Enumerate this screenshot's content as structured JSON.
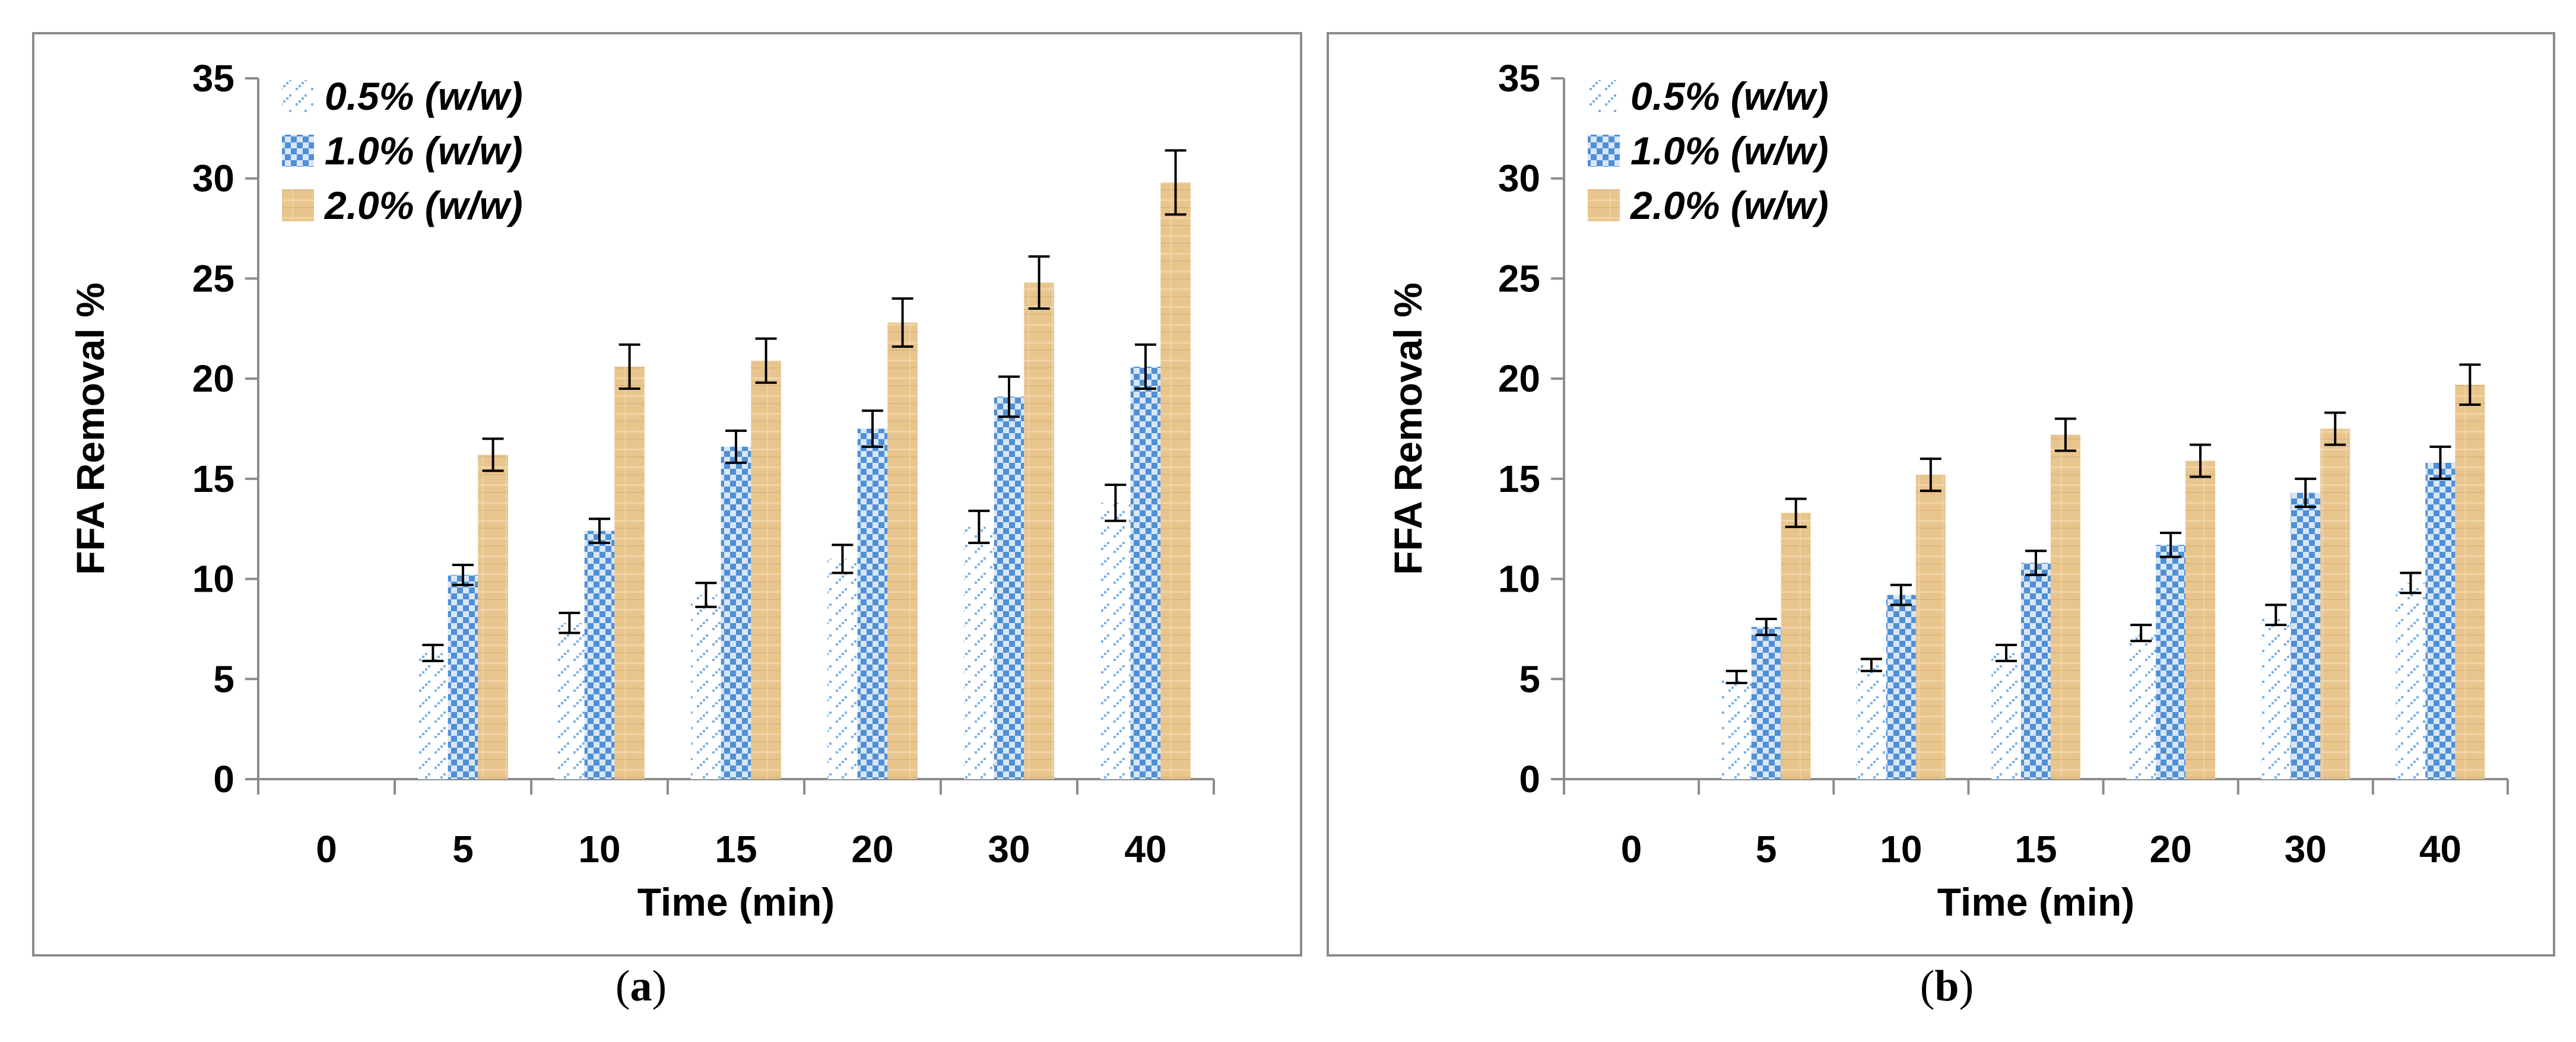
{
  "chart_data": [
    {
      "type": "bar",
      "panel_label": "(a)",
      "panel_letter": "a",
      "xlabel": "Time (min)",
      "ylabel": "FFA Removal %",
      "ylim": [
        0,
        35
      ],
      "yticks": [
        0,
        5,
        10,
        15,
        20,
        25,
        30,
        35
      ],
      "categories": [
        "0",
        "5",
        "10",
        "15",
        "20",
        "30",
        "40"
      ],
      "legend_position": "top-left",
      "series": [
        {
          "name": "0.5% (w/w)",
          "values": [
            0,
            6.3,
            7.8,
            9.2,
            11.0,
            12.6,
            13.8
          ],
          "errors": [
            0,
            0.4,
            0.5,
            0.6,
            0.7,
            0.8,
            0.9
          ]
        },
        {
          "name": "1.0% (w/w)",
          "values": [
            0,
            10.2,
            12.4,
            16.6,
            17.5,
            19.1,
            20.6
          ],
          "errors": [
            0,
            0.5,
            0.6,
            0.8,
            0.9,
            1.0,
            1.1
          ]
        },
        {
          "name": "2.0% (w/w)",
          "values": [
            0,
            16.2,
            20.6,
            20.9,
            22.8,
            24.8,
            29.8
          ],
          "errors": [
            0,
            0.8,
            1.1,
            1.1,
            1.2,
            1.3,
            1.6
          ]
        }
      ]
    },
    {
      "type": "bar",
      "panel_label": "(b)",
      "panel_letter": "b",
      "xlabel": "Time (min)",
      "ylabel": "FFA Removal %",
      "ylim": [
        0,
        35
      ],
      "yticks": [
        0,
        5,
        10,
        15,
        20,
        25,
        30,
        35
      ],
      "categories": [
        "0",
        "5",
        "10",
        "15",
        "20",
        "30",
        "40"
      ],
      "legend_position": "top-left",
      "series": [
        {
          "name": "0.5% (w/w)",
          "values": [
            0,
            5.1,
            5.7,
            6.3,
            7.3,
            8.2,
            9.8
          ],
          "errors": [
            0,
            0.3,
            0.3,
            0.4,
            0.4,
            0.5,
            0.5
          ]
        },
        {
          "name": "1.0% (w/w)",
          "values": [
            0,
            7.6,
            9.2,
            10.8,
            11.7,
            14.3,
            15.8
          ],
          "errors": [
            0,
            0.4,
            0.5,
            0.6,
            0.6,
            0.7,
            0.8
          ]
        },
        {
          "name": "2.0% (w/w)",
          "values": [
            0,
            13.3,
            15.2,
            17.2,
            15.9,
            17.5,
            19.7
          ],
          "errors": [
            0,
            0.7,
            0.8,
            0.8,
            0.8,
            0.8,
            1.0
          ]
        }
      ]
    }
  ],
  "colors": {
    "series_0_5": "#7fb2e5",
    "series_1_0": "#4f8fd6",
    "series_2_0": "#e9c58e",
    "axis": "#8c8c8c",
    "error_bar": "#000000"
  },
  "icons": [
    "dotted-pattern-swatch",
    "checker-pattern-swatch",
    "papyrus-texture-swatch"
  ]
}
